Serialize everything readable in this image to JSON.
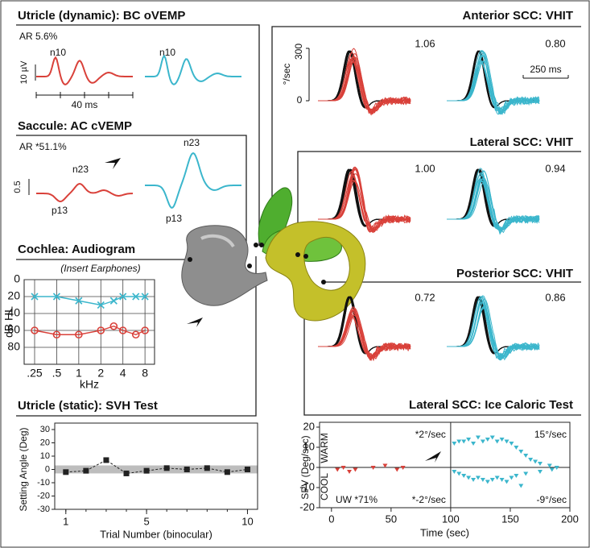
{
  "panels": {
    "ovemp": {
      "title": "Utricle (dynamic): BC oVEMP",
      "ar": "AR 5.6%",
      "scale": "10 µV",
      "peak_left": "n10",
      "peak_right": "n10",
      "time_scale": "40 ms"
    },
    "cvemp": {
      "title": "Saccule: AC cVEMP",
      "ar": "AR *51.1%",
      "scale": "0.5",
      "n23_left": "n23",
      "p13_left": "p13",
      "n23_right": "n23",
      "p13_right": "p13"
    },
    "vhit": [
      {
        "title": "Anterior SCC: VHIT",
        "gain_left": "1.06",
        "gain_right": "0.80"
      },
      {
        "title": "Lateral SCC: VHIT",
        "gain_left": "1.00",
        "gain_right": "0.94"
      },
      {
        "title": "Posterior SCC: VHIT",
        "gain_left": "0.72",
        "gain_right": "0.86"
      }
    ],
    "vhit_axis": {
      "y_top": "300",
      "y_bottom": "0",
      "y_label": "°/sec",
      "time_scale": "250 ms"
    }
  },
  "chart_data": [
    {
      "type": "line",
      "title": "Cochlea: Audiogram",
      "subtitle": "(Insert Earphones)",
      "x": [
        0.25,
        0.5,
        1,
        2,
        3,
        4,
        6,
        8
      ],
      "log_x": true,
      "xlim": [
        0.18,
        10.8
      ],
      "xticks": [
        {
          "value": 0.25,
          "label": ".25"
        },
        {
          "value": 0.5,
          "label": ".5"
        },
        1,
        2,
        4,
        8
      ],
      "ylim": [
        100,
        0
      ],
      "yticks": [
        0,
        20,
        40,
        60,
        80
      ],
      "xlabel": "kHz",
      "ylabel": "dB HL",
      "grid": true,
      "series": [
        {
          "color": "#3bb6cc",
          "marker": "x",
          "values": [
            20,
            20,
            25,
            30,
            25,
            20,
            20,
            20
          ]
        },
        {
          "color": "#d9413a",
          "marker": "o",
          "values": [
            60,
            65,
            65,
            60,
            55,
            60,
            65,
            60
          ]
        }
      ]
    },
    {
      "type": "line",
      "title": "Utricle (static): SVH Test",
      "x": [
        1,
        2,
        3,
        4,
        5,
        6,
        7,
        8,
        9,
        10
      ],
      "xlim": [
        0.45,
        10.5
      ],
      "xticks": [
        1,
        5,
        10
      ],
      "ylim": [
        -30,
        30
      ],
      "yticks": [
        -30,
        -20,
        -10,
        0,
        10,
        20,
        30
      ],
      "normal_range": [
        -3,
        3
      ],
      "xlabel": "Trial Number (binocular)",
      "ylabel": "Setting Angle (Deg)",
      "series": [
        {
          "color": "#222222",
          "marker": "square",
          "dashed": true,
          "values": [
            -2,
            -1,
            7,
            -3,
            -1,
            1,
            0,
            1,
            -2,
            0
          ]
        }
      ]
    },
    {
      "type": "scatter",
      "title": "Lateral SCC: Ice Caloric Test",
      "xlim": [
        -10,
        200
      ],
      "xticks": [
        0,
        50,
        100,
        150,
        200
      ],
      "ylim": [
        -20,
        20
      ],
      "yticks": [
        -20,
        -10,
        0,
        10,
        20
      ],
      "divider_x": 100,
      "xlabel": "Time (sec)",
      "ylabel": "SPV (Deg/sec)",
      "annotations": {
        "warm": "WARM",
        "cool": "COOL",
        "left_warm": "*2°/sec",
        "left_cool": "*-2°/sec",
        "right_warm": "15°/sec",
        "right_cool": "-9°/sec",
        "uw": "UW *71%"
      },
      "series": [
        {
          "color": "#d9413a",
          "x": [
            5,
            10,
            15,
            20,
            35,
            45,
            55,
            60
          ],
          "values": [
            -1,
            0,
            -2,
            -1,
            0,
            1,
            -1,
            0
          ]
        },
        {
          "color": "#3bb6cc",
          "x": [
            103,
            107,
            111,
            115,
            119,
            123,
            127,
            131,
            135,
            139,
            143,
            147,
            151,
            155,
            159,
            163,
            167,
            171,
            175,
            183,
            189
          ],
          "values": [
            12,
            13,
            13,
            14,
            12,
            15,
            13,
            14,
            15,
            13,
            14,
            13,
            12,
            10,
            8,
            6,
            4,
            3,
            2,
            1,
            0
          ]
        },
        {
          "color": "#3bb6cc",
          "x": [
            103,
            107,
            111,
            115,
            119,
            123,
            127,
            131,
            135,
            139,
            143,
            147,
            151,
            155,
            159,
            163,
            175,
            185
          ],
          "values": [
            -2,
            -3,
            -4,
            -5,
            -6,
            -5,
            -6,
            -7,
            -6,
            -5,
            -6,
            -7,
            -5,
            -4,
            -9,
            -3,
            -2,
            -1
          ]
        }
      ]
    }
  ]
}
